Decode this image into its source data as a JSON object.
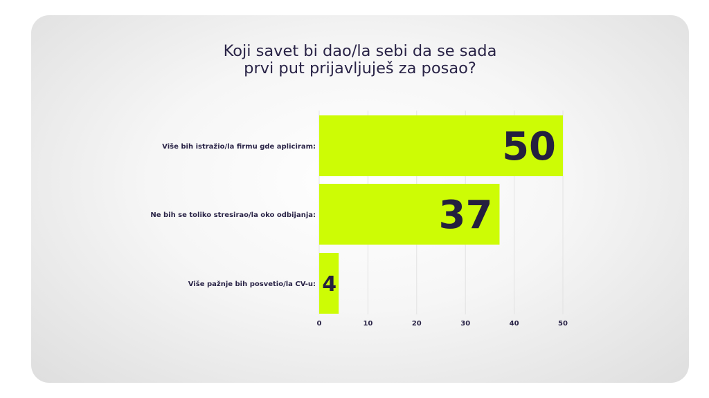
{
  "title_lines": [
    "Koji savet bi dao/la sebi da se sada",
    "prvi put prijavljuješ za posao?"
  ],
  "colors": {
    "bar": "#cdfc05",
    "text": "#2a2447",
    "grid": "#e2e2e2"
  },
  "chart_data": {
    "type": "bar",
    "orientation": "horizontal",
    "title": "Koji savet bi dao/la sebi da se sada prvi put prijavljuješ za posao?",
    "categories": [
      "Više bih istražio/la firmu gde apliciram:",
      "Ne bih se toliko stresirao/la oko odbijanja:",
      "Više pažnje bih posvetio/la CV-u:"
    ],
    "values": [
      50,
      37,
      4
    ],
    "data_labels": [
      "50",
      "37",
      "4"
    ],
    "xlim": [
      0,
      50
    ],
    "xticks": [
      0,
      10,
      20,
      30,
      40,
      50
    ],
    "xtick_labels": [
      "0",
      "10",
      "20",
      "30",
      "40",
      "50"
    ],
    "xlabel": "",
    "ylabel": "",
    "grid": "vertical"
  }
}
